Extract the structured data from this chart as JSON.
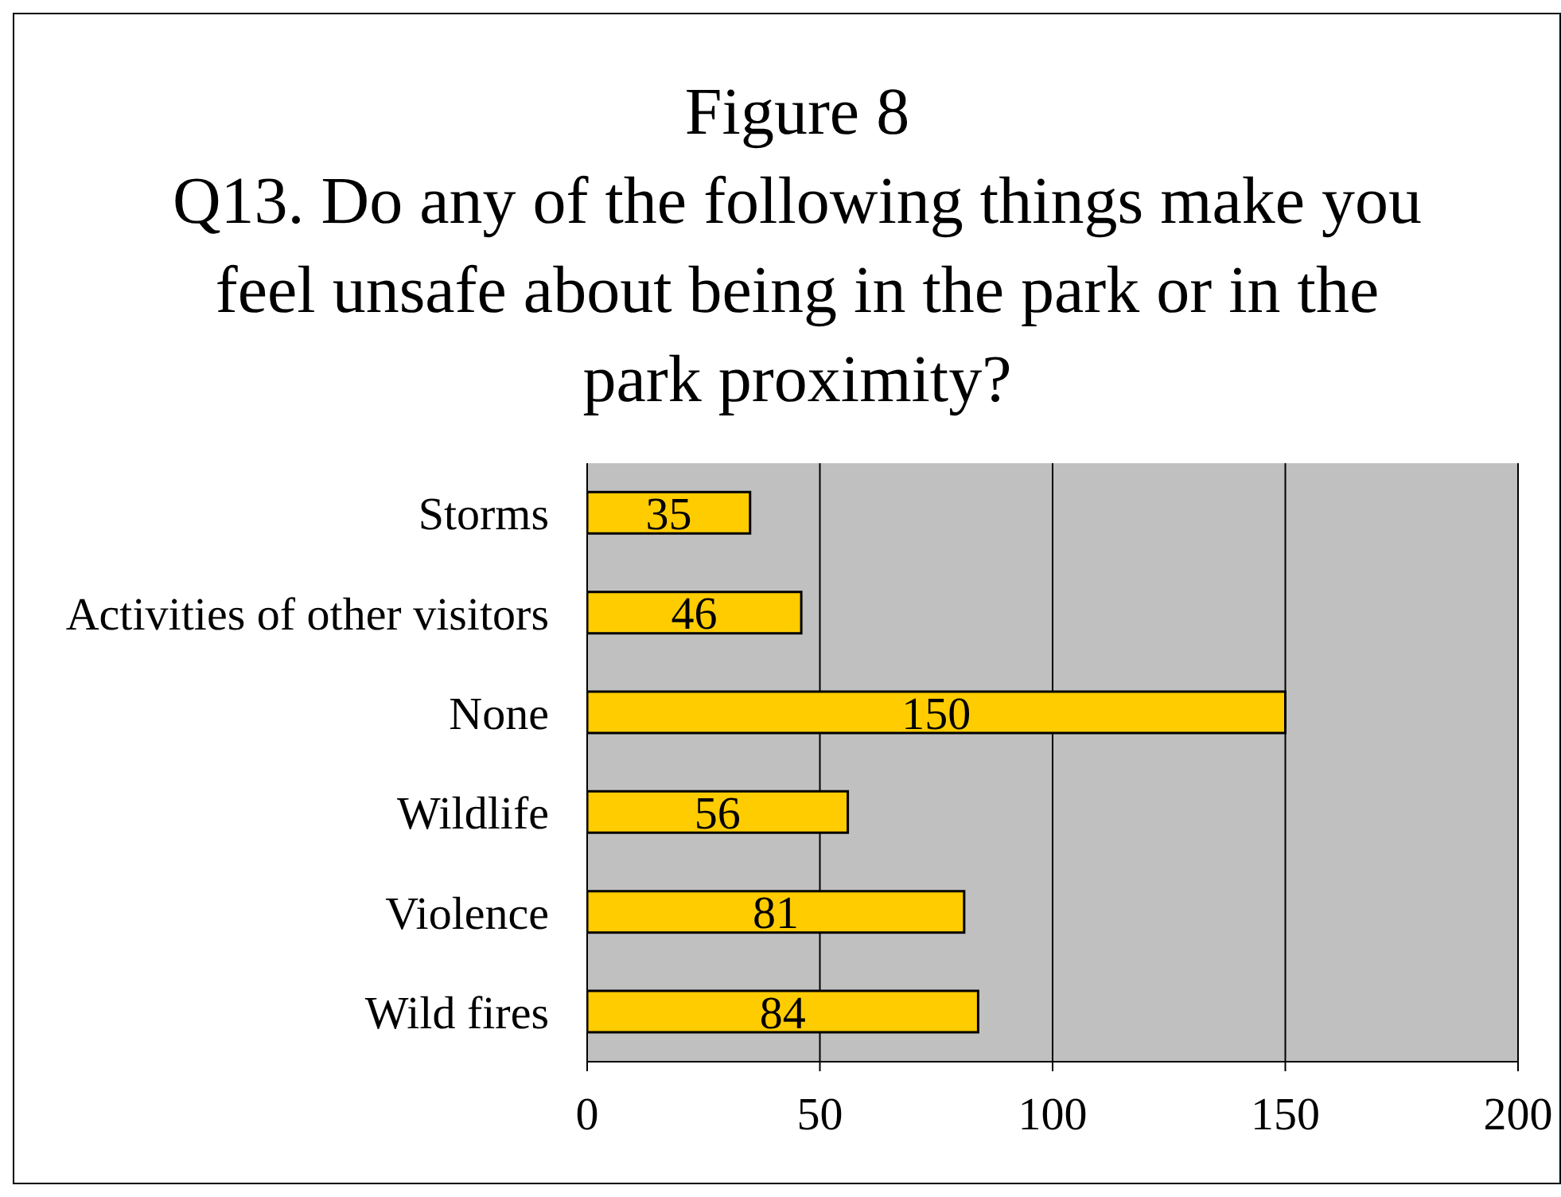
{
  "chart_data": {
    "type": "bar",
    "orientation": "horizontal",
    "title": "Figure 8",
    "subtitle": "Q13. Do any of the following things make you feel unsafe about being in the park or in the park proximity?",
    "categories": [
      "Storms",
      "Activities of other visitors",
      "None",
      "Wildlife",
      "Violence",
      "Wild fires"
    ],
    "values": [
      35,
      46,
      150,
      56,
      81,
      84
    ],
    "color": "#ffcc00",
    "data_labels": true,
    "xlim": [
      0,
      200
    ],
    "xticks": [
      0,
      50,
      100,
      150,
      200
    ],
    "grid": "x"
  }
}
